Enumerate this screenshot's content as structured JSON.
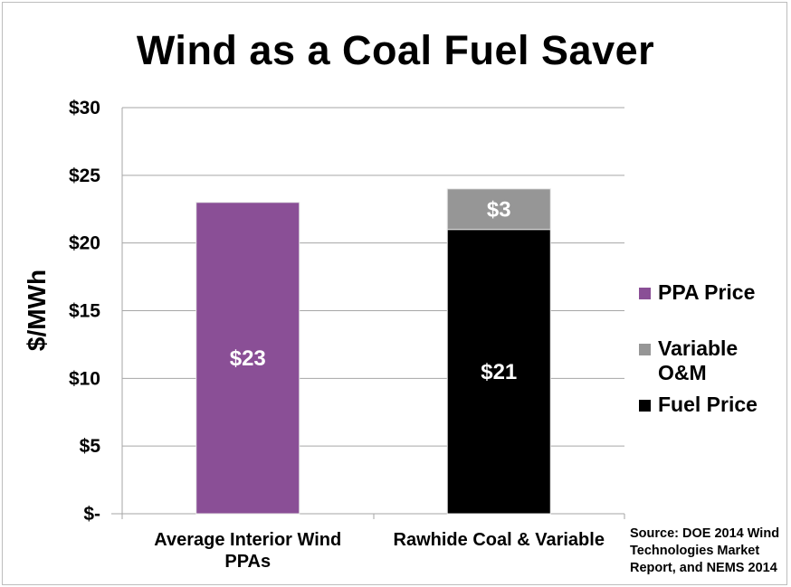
{
  "chart_data": {
    "type": "bar",
    "stacked": true,
    "title": "Wind as a Coal Fuel Saver",
    "ylabel": "$/MWh",
    "ylim": [
      0,
      30
    ],
    "ytick_values": [
      0,
      5,
      10,
      15,
      20,
      25,
      30
    ],
    "ytick_labels": [
      "$-",
      "$5",
      "$10",
      "$15",
      "$20",
      "$25",
      "$30"
    ],
    "categories": [
      "Average Interior Wind PPAs",
      "Rawhide Coal & Variable"
    ],
    "series": [
      {
        "name": "PPA Price",
        "color": "#8a4f96",
        "values": [
          23,
          null
        ],
        "labels": [
          "$23",
          null
        ]
      },
      {
        "name": "Fuel Price",
        "color": "#000000",
        "values": [
          null,
          21
        ],
        "labels": [
          null,
          "$21"
        ]
      },
      {
        "name": "Variable O&M",
        "color": "#969696",
        "values": [
          null,
          3
        ],
        "labels": [
          null,
          "$3"
        ]
      }
    ],
    "legend_order": [
      "PPA Price",
      "Variable O&M",
      "Fuel Price"
    ],
    "legend_position": "right",
    "grid": true
  },
  "legend": [
    {
      "label": "PPA Price",
      "color": "#8a4f96"
    },
    {
      "label": "Variable O&M",
      "color": "#969696"
    },
    {
      "label": "Fuel Price",
      "color": "#000000"
    }
  ],
  "source": "Source: DOE 2014 Wind Technologies Market Report, and NEMS 2014"
}
